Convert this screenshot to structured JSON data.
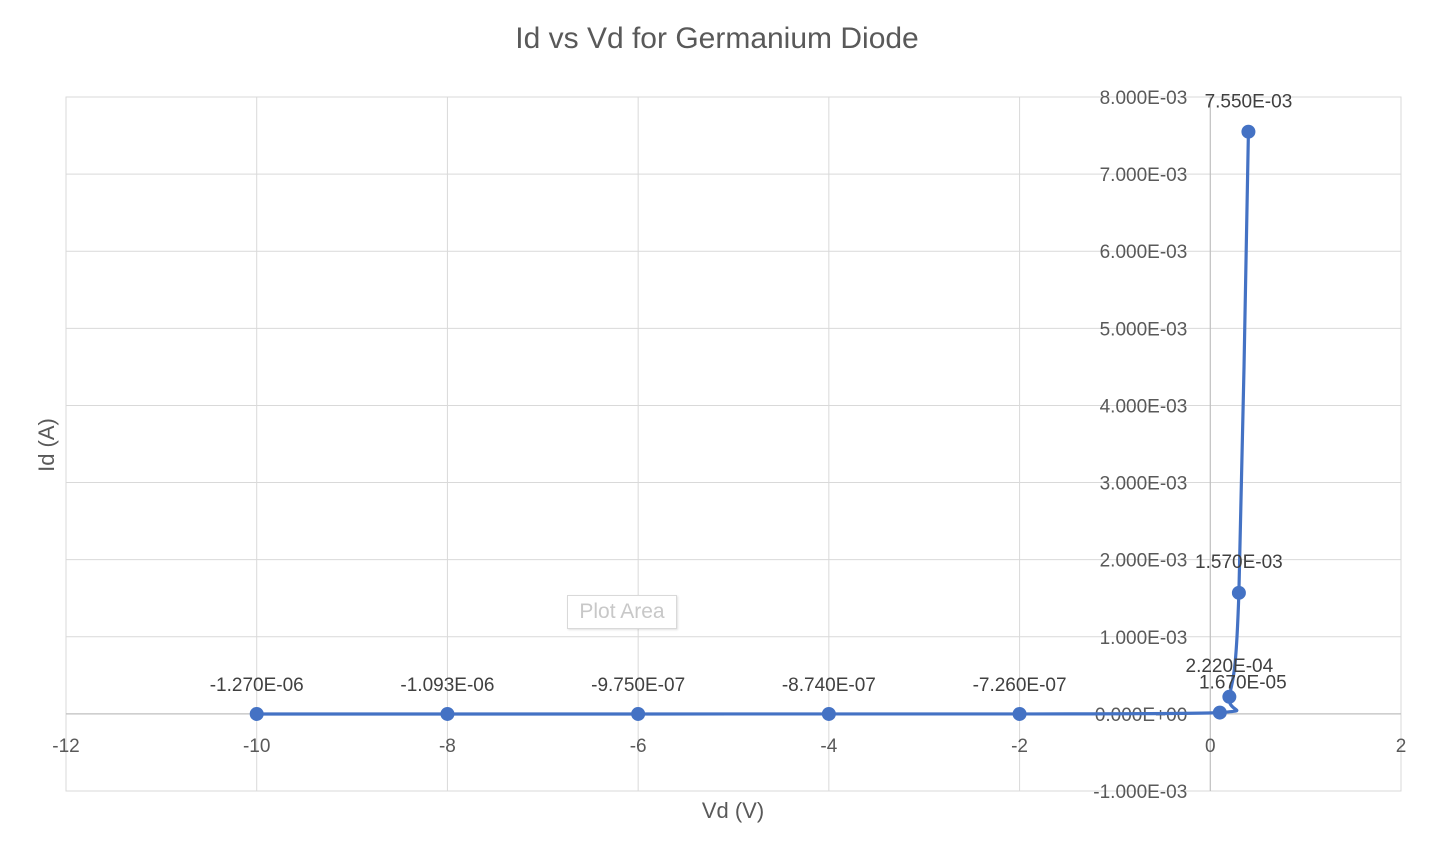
{
  "chart_data": {
    "type": "scatter",
    "title": "Id vs Vd for Germanium Diode",
    "xlabel": "Vd (V)",
    "ylabel": "Id (A)",
    "xlim": [
      -12,
      2
    ],
    "ylim": [
      -0.001,
      0.008
    ],
    "x_ticks": [
      -12,
      -10,
      -8,
      -6,
      -4,
      -2,
      0,
      2
    ],
    "x_tick_labels": [
      "-12",
      "-10",
      "-8",
      "-6",
      "-4",
      "-2",
      "0",
      "2"
    ],
    "y_ticks": [
      -0.001,
      0,
      0.001,
      0.002,
      0.003,
      0.004,
      0.005,
      0.006,
      0.007,
      0.008
    ],
    "y_tick_labels": [
      "-1.000E-03",
      "0.000E+00",
      "1.000E-03",
      "2.000E-03",
      "3.000E-03",
      "4.000E-03",
      "5.000E-03",
      "6.000E-03",
      "7.000E-03",
      "8.000E-03"
    ],
    "grid": true,
    "smooth_line": true,
    "series": [
      {
        "color": "#4472C4",
        "points": [
          {
            "x": -10,
            "y": -1.27e-06,
            "label": "-1.270E-06"
          },
          {
            "x": -8,
            "y": -1.093e-06,
            "label": "-1.093E-06"
          },
          {
            "x": -6,
            "y": -9.75e-07,
            "label": "-9.750E-07"
          },
          {
            "x": -4,
            "y": -8.74e-07,
            "label": "-8.740E-07"
          },
          {
            "x": -2,
            "y": -7.26e-07,
            "label": "-7.260E-07"
          },
          {
            "x": 0.1,
            "y": 1.67e-05,
            "label": "1.670E-05"
          },
          {
            "x": 0.2,
            "y": 0.000222,
            "label": "2.220E-04"
          },
          {
            "x": 0.3,
            "y": 0.00157,
            "label": "1.570E-03"
          },
          {
            "x": 0.4,
            "y": 0.00755,
            "label": "7.550E-03"
          }
        ]
      }
    ],
    "overlay_tag": "Plot Area"
  }
}
